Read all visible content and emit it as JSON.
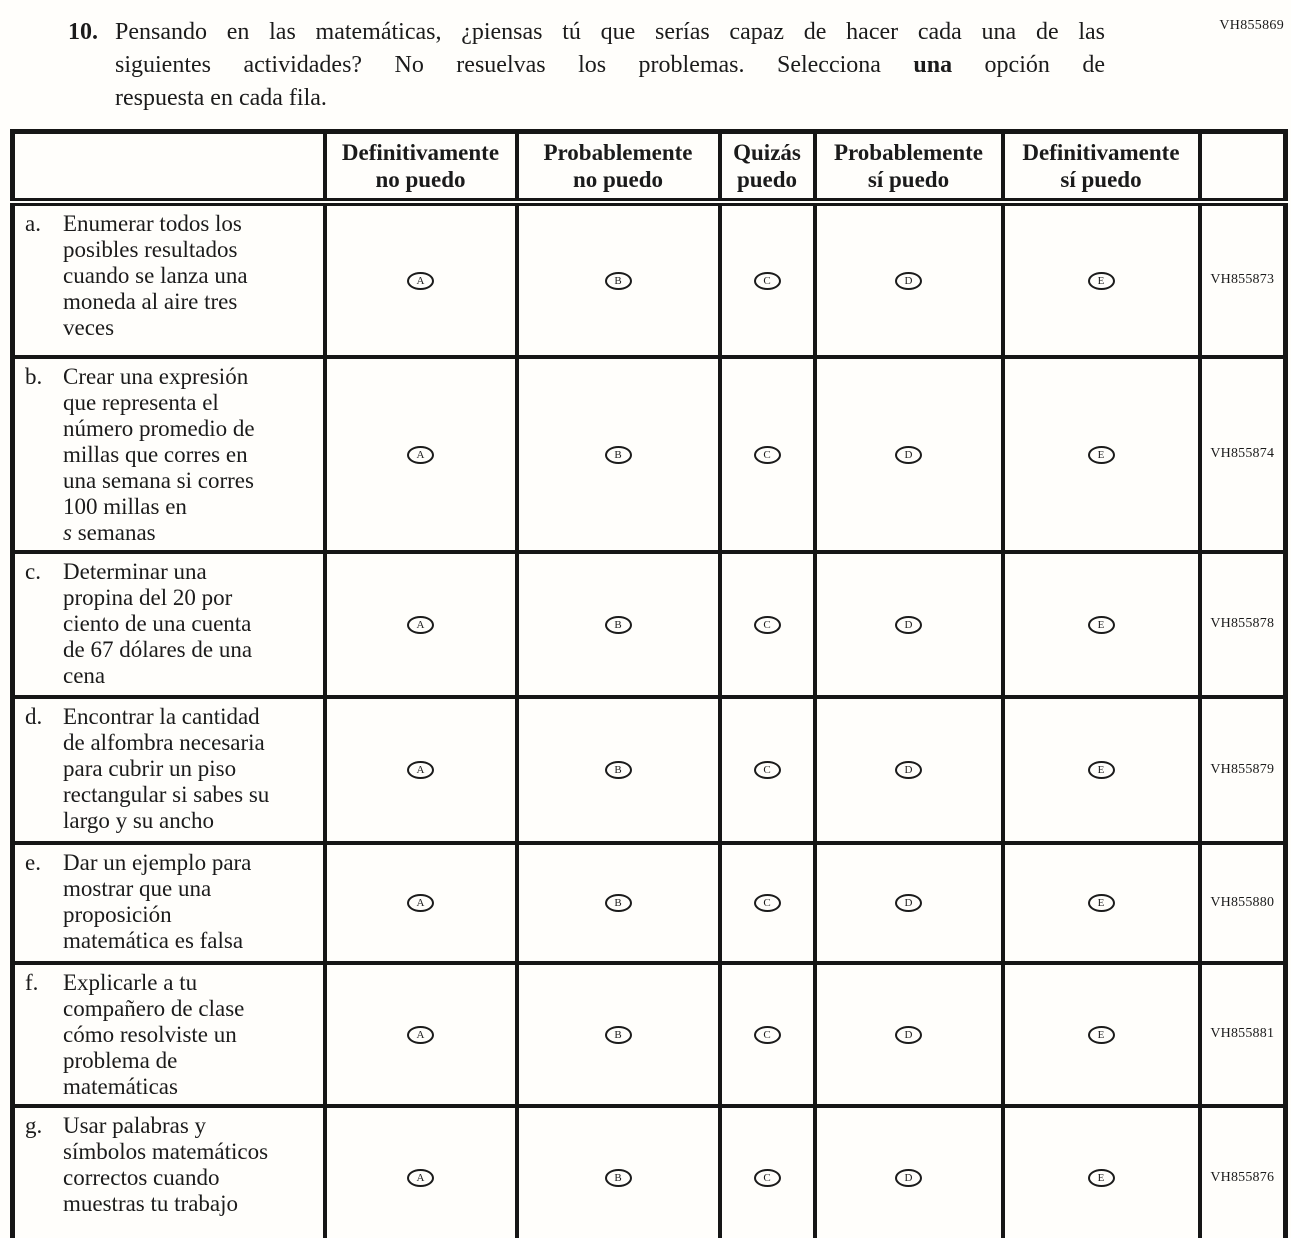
{
  "page": {
    "top_right_code": "VH855869",
    "question": {
      "number": "10.",
      "lines": [
        [
          {
            "text": "Pensando en las matemáticas, ¿piensas tú que serías capaz de hacer cada una de las"
          }
        ],
        [
          {
            "text": "siguientes actividades? No resuelvas los problemas. Selecciona "
          },
          {
            "text": "una",
            "bold": true
          },
          {
            "text": " opción de"
          }
        ],
        [
          {
            "text": "respuesta en cada fila."
          }
        ]
      ]
    }
  },
  "table": {
    "columns": [
      "Definitivamente\nno puedo",
      "Probablemente\nno puedo",
      "Quizás\npuedo",
      "Probablemente\nsí puedo",
      "Definitivamente\nsí puedo"
    ],
    "option_letters": [
      "A",
      "B",
      "C",
      "D",
      "E"
    ],
    "rows": [
      {
        "letter": "a.",
        "segments": [
          {
            "text": "Enumerar todos los\nposibles resultados\ncuando se lanza una\nmoneda al aire tres\nveces"
          }
        ],
        "code": "VH855873"
      },
      {
        "letter": "b.",
        "segments": [
          {
            "text": "Crear una expresión\nque representa el\nnúmero promedio de\nmillas que corres en\nuna semana si corres\n100 millas en\n"
          },
          {
            "text": "s",
            "italic": true
          },
          {
            "text": " semanas"
          }
        ],
        "code": "VH855874"
      },
      {
        "letter": "c.",
        "segments": [
          {
            "text": "Determinar una\npropina del 20 por\nciento de una cuenta\nde 67 dólares de una\ncena"
          }
        ],
        "code": "VH855878"
      },
      {
        "letter": "d.",
        "segments": [
          {
            "text": "Encontrar la cantidad\nde alfombra necesaria\npara cubrir un piso\nrectangular si sabes su\nlargo y su ancho"
          }
        ],
        "code": "VH855879"
      },
      {
        "letter": "e.",
        "segments": [
          {
            "text": "Dar un ejemplo para\nmostrar que una\nproposición\nmatemática es falsa"
          }
        ],
        "code": "VH855880"
      },
      {
        "letter": "f.",
        "segments": [
          {
            "text": "Explicarle a tu\ncompañero de clase\ncómo resolviste un\nproblema de\nmatemáticas"
          }
        ],
        "code": "VH855881"
      },
      {
        "letter": "g.",
        "segments": [
          {
            "text": "Usar palabras y\nsímbolos matemáticos\ncorrectos cuando\nmuestras tu trabajo"
          }
        ],
        "code": "VH855876"
      }
    ]
  },
  "colors": {
    "ink": "#1b1b1b",
    "paper": "#fffefb"
  }
}
